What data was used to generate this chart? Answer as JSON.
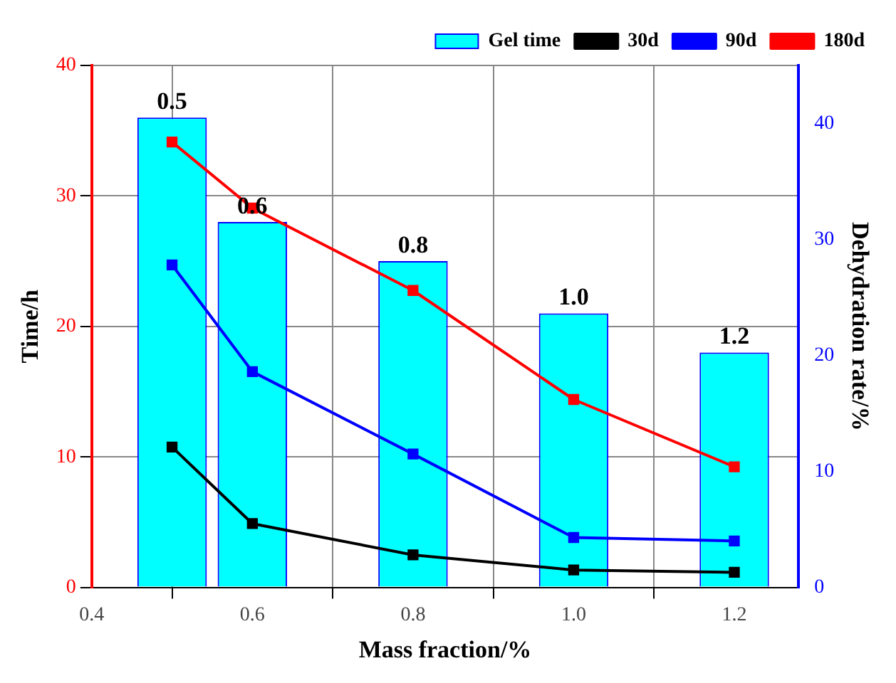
{
  "chart_data": {
    "type": "bar",
    "xlabel": "Mass fraction/%",
    "ylabel": "Time/h",
    "y2label": "Dehydration rate/%",
    "x": [
      0.5,
      0.6,
      0.8,
      1.0,
      1.2
    ],
    "xlim": [
      0.4,
      1.28
    ],
    "xticks": [
      {
        "value": 0.4,
        "label": "0.4"
      },
      {
        "value": 0.6,
        "label": "0.6"
      },
      {
        "value": 0.8,
        "label": "0.8"
      },
      {
        "value": 1.0,
        "label": "1.0"
      },
      {
        "value": 1.2,
        "label": "1.2"
      }
    ],
    "ylim": [
      0,
      40
    ],
    "yticks": [
      0,
      10,
      20,
      30,
      40
    ],
    "y2lim": [
      0,
      45
    ],
    "y2ticks": [
      0,
      10,
      20,
      30,
      40
    ],
    "series": [
      {
        "name": "Gel time",
        "color": "#00ffff",
        "values": [
          36,
          28,
          25,
          21,
          18
        ]
      },
      {
        "name": "30d",
        "type": "line",
        "axis": "y2",
        "color": "#000000",
        "values": [
          12.1,
          5.5,
          2.8,
          1.5,
          1.3
        ]
      },
      {
        "name": "90d",
        "type": "line",
        "axis": "y2",
        "color": "#0000ff",
        "values": [
          27.8,
          18.6,
          11.5,
          4.3,
          4.0
        ]
      },
      {
        "name": "180d",
        "type": "line",
        "axis": "y2",
        "color": "#ff0000",
        "values": [
          38.4,
          32.7,
          25.6,
          16.2,
          10.4
        ]
      }
    ],
    "annotations": [
      {
        "text": "0.5",
        "x": 0.5,
        "y": 36
      },
      {
        "text": "0.6",
        "x": 0.6,
        "y": 28
      },
      {
        "text": "0.8",
        "x": 0.8,
        "y": 25
      },
      {
        "text": "1.0",
        "x": 1.0,
        "y": 21
      },
      {
        "text": "1.2",
        "x": 1.2,
        "y": 18
      }
    ],
    "grid": true,
    "legend": "top right",
    "marker": "square",
    "line_style": "solid"
  }
}
